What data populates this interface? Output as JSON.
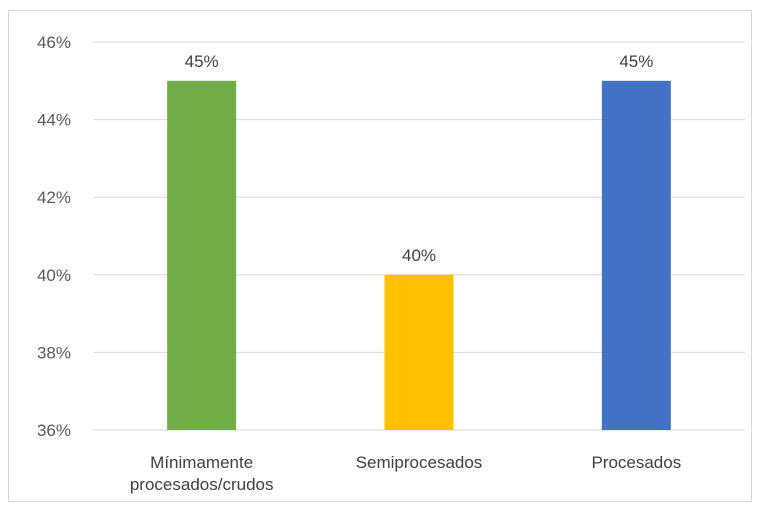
{
  "chart_data": {
    "type": "bar",
    "categories": [
      "Mínimamente procesados/crudos",
      "Semiprocesados",
      "Procesados"
    ],
    "category_lines": [
      [
        "Mínimamente",
        "procesados/crudos"
      ],
      [
        "Semiprocesados"
      ],
      [
        "Procesados"
      ]
    ],
    "values": [
      45,
      40,
      45
    ],
    "data_labels": [
      "45%",
      "40%",
      "45%"
    ],
    "colors": [
      "#70AD47",
      "#FFC000",
      "#4472C4"
    ],
    "ylim": [
      36,
      46
    ],
    "yticks": [
      36,
      38,
      40,
      42,
      44,
      46
    ],
    "ytick_labels": [
      "36%",
      "38%",
      "40%",
      "42%",
      "44%",
      "46%"
    ],
    "grid": true,
    "legend": "none",
    "title": "",
    "xlabel": "",
    "ylabel": ""
  }
}
